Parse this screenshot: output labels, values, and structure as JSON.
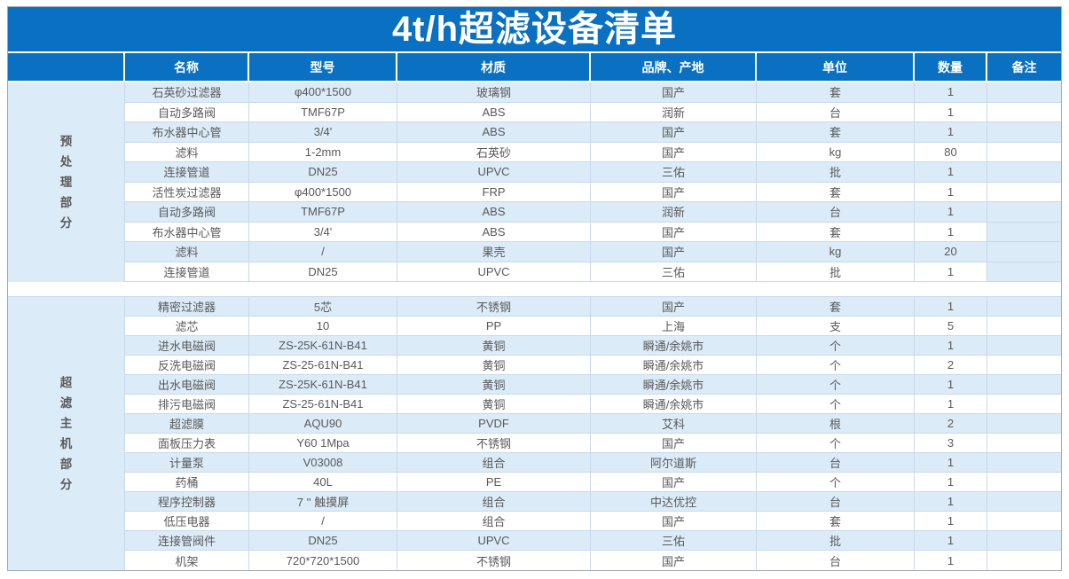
{
  "title": "4t/h超滤设备清单",
  "colors": {
    "header_bg": "#0a70c2",
    "stripe_bg": "#dcebf8",
    "text": "#595959",
    "grid_line": "#c9d9ea"
  },
  "columns": [
    {
      "key": "name",
      "label": "名称"
    },
    {
      "key": "model",
      "label": "型号"
    },
    {
      "key": "material",
      "label": "材质"
    },
    {
      "key": "brand",
      "label": "品牌、产地"
    },
    {
      "key": "unit",
      "label": "单位"
    },
    {
      "key": "qty",
      "label": "数量"
    },
    {
      "key": "note",
      "label": "备注"
    }
  ],
  "sections": [
    {
      "group_label": "预处理部分",
      "rows": [
        {
          "name": "石英砂过滤器",
          "model": "φ400*1500",
          "material": "玻璃钢",
          "brand": "国产",
          "unit": "套",
          "qty": "1",
          "note": ""
        },
        {
          "name": "自动多路阀",
          "model": "TMF67P",
          "material": "ABS",
          "brand": "润新",
          "unit": "台",
          "qty": "1",
          "note": ""
        },
        {
          "name": "布水器中心管",
          "model": "3/4'",
          "material": "ABS",
          "brand": "国产",
          "unit": "套",
          "qty": "1",
          "note": ""
        },
        {
          "name": "滤料",
          "model": "1-2mm",
          "material": "石英砂",
          "brand": "国产",
          "unit": "kg",
          "qty": "80",
          "note": ""
        },
        {
          "name": "连接管道",
          "model": "DN25",
          "material": "UPVC",
          "brand": "三佑",
          "unit": "批",
          "qty": "1",
          "note": ""
        },
        {
          "name": "活性炭过滤器",
          "model": "φ400*1500",
          "material": "FRP",
          "brand": "国产",
          "unit": "套",
          "qty": "1",
          "note": ""
        },
        {
          "name": "自动多路阀",
          "model": "TMF67P",
          "material": "ABS",
          "brand": "润新",
          "unit": "台",
          "qty": "1",
          "note": ""
        },
        {
          "name": "布水器中心管",
          "model": "3/4'",
          "material": "ABS",
          "brand": "国产",
          "unit": "套",
          "qty": "1",
          "note": "",
          "note_shaded": true
        },
        {
          "name": "滤料",
          "model": "/",
          "material": "果壳",
          "brand": "国产",
          "unit": "kg",
          "qty": "20",
          "note": "",
          "note_shaded": true
        },
        {
          "name": "连接管道",
          "model": "DN25",
          "material": "UPVC",
          "brand": "三佑",
          "unit": "批",
          "qty": "1",
          "note": "",
          "note_shaded": true
        }
      ]
    },
    {
      "group_label": "超滤主机部分",
      "rows": [
        {
          "name": "精密过滤器",
          "model": "5芯",
          "material": "不锈钢",
          "brand": "国产",
          "unit": "套",
          "qty": "1",
          "note": ""
        },
        {
          "name": "滤芯",
          "model": "10",
          "material": "PP",
          "brand": "上海",
          "unit": "支",
          "qty": "5",
          "note": ""
        },
        {
          "name": "进水电磁阀",
          "model": "ZS-25K-61N-B41",
          "material": "黄铜",
          "brand": "瞬通/余姚市",
          "unit": "个",
          "qty": "1",
          "note": ""
        },
        {
          "name": "反洗电磁阀",
          "model": "ZS-25-61N-B41",
          "material": "黄铜",
          "brand": "瞬通/余姚市",
          "unit": "个",
          "qty": "2",
          "note": ""
        },
        {
          "name": "出水电磁阀",
          "model": "ZS-25K-61N-B41",
          "material": "黄铜",
          "brand": "瞬通/余姚市",
          "unit": "个",
          "qty": "1",
          "note": ""
        },
        {
          "name": "排污电磁阀",
          "model": "ZS-25-61N-B41",
          "material": "黄铜",
          "brand": "瞬通/余姚市",
          "unit": "个",
          "qty": "1",
          "note": ""
        },
        {
          "name": "超滤膜",
          "model": "AQU90",
          "material": "PVDF",
          "brand": "艾科",
          "unit": "根",
          "qty": "2",
          "note": ""
        },
        {
          "name": "面板压力表",
          "model": "Y60 1Mpa",
          "material": "不锈钢",
          "brand": "国产",
          "unit": "个",
          "qty": "3",
          "note": ""
        },
        {
          "name": "计量泵",
          "model": "V03008",
          "material": "组合",
          "brand": "阿尔道斯",
          "unit": "台",
          "qty": "1",
          "note": ""
        },
        {
          "name": "药桶",
          "model": "40L",
          "material": "PE",
          "brand": "国产",
          "unit": "个",
          "qty": "1",
          "note": ""
        },
        {
          "name": "程序控制器",
          "model": "7 '' 触摸屏",
          "material": "组合",
          "brand": "中达优控",
          "unit": "台",
          "qty": "1",
          "note": ""
        },
        {
          "name": "低压电器",
          "model": "/",
          "material": "组合",
          "brand": "国产",
          "unit": "套",
          "qty": "1",
          "note": ""
        },
        {
          "name": "连接管阀件",
          "model": "DN25",
          "material": "UPVC",
          "brand": "三佑",
          "unit": "批",
          "qty": "1",
          "note": ""
        },
        {
          "name": "机架",
          "model": "720*720*1500",
          "material": "不锈钢",
          "brand": "国产",
          "unit": "台",
          "qty": "1",
          "note": ""
        }
      ]
    }
  ]
}
